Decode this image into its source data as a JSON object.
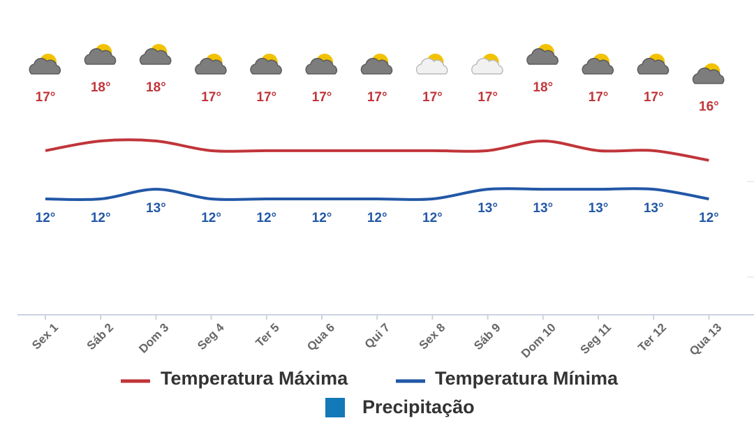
{
  "chart_data": {
    "type": "line",
    "categories": [
      "Sex 1",
      "Sáb 2",
      "Dom 3",
      "Seg 4",
      "Ter 5",
      "Qua 6",
      "Qui 7",
      "Sex 8",
      "Sáb 9",
      "Dom 10",
      "Seg 11",
      "Ter 12",
      "Qua 13"
    ],
    "series": [
      {
        "name": "Temperatura Máxima",
        "color": "#c0353a",
        "values": [
          17,
          18,
          18,
          17,
          17,
          17,
          17,
          17,
          17,
          18,
          17,
          17,
          16
        ],
        "value_labels": [
          "17°",
          "18°",
          "18°",
          "17°",
          "17°",
          "17°",
          "17°",
          "17°",
          "17°",
          "18°",
          "17°",
          "17°",
          "16°"
        ]
      },
      {
        "name": "Temperatura Mínima",
        "color": "#2257a6",
        "values": [
          12,
          12,
          13,
          12,
          12,
          12,
          12,
          12,
          13,
          13,
          13,
          13,
          12
        ],
        "value_labels": [
          "12°",
          "12°",
          "13°",
          "12°",
          "12°",
          "12°",
          "12°",
          "12°",
          "13°",
          "13°",
          "13°",
          "13°",
          "12°"
        ]
      },
      {
        "name": "Precipitação",
        "color": "#1479b8",
        "values": [
          null,
          null,
          null,
          null,
          null,
          null,
          null,
          null,
          null,
          null,
          null,
          null,
          null
        ]
      }
    ],
    "ylim": [
      0,
      30
    ],
    "grid": false
  }
}
